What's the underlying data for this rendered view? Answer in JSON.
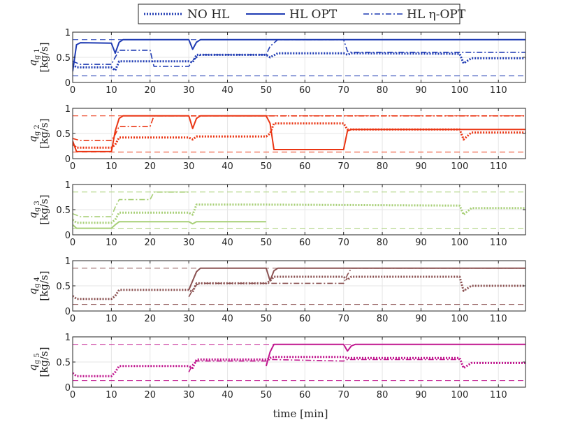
{
  "legend": {
    "entries": [
      {
        "label": "NO HL",
        "style": "dotted"
      },
      {
        "label": "HL OPT",
        "style": "solid"
      },
      {
        "label": "HL η-OPT",
        "style": "dashdot"
      }
    ]
  },
  "xaxis": {
    "label": "time [min]",
    "ticks": [
      "0",
      "10",
      "20",
      "30",
      "40",
      "50",
      "60",
      "70",
      "80",
      "90",
      "100",
      "110"
    ],
    "xlim": [
      0,
      117
    ]
  },
  "chart_data": [
    {
      "type": "line",
      "ylabel_var": "q",
      "ylabel_sub": "g 1",
      "ylabel_unit": "[kg/s]",
      "color": "#1f3bb3",
      "ylim": [
        0,
        1
      ],
      "yticks": [
        "0",
        "0.5",
        "1"
      ],
      "bounds": [
        0.13,
        0.85
      ],
      "series": [
        {
          "name": "NO HL",
          "points": [
            [
              0,
              0.36
            ],
            [
              1,
              0.3
            ],
            [
              10,
              0.3
            ],
            [
              11,
              0.24
            ],
            [
              12,
              0.42
            ],
            [
              30,
              0.42
            ],
            [
              31,
              0.4
            ],
            [
              32,
              0.55
            ],
            [
              50,
              0.55
            ],
            [
              51,
              0.5
            ],
            [
              53,
              0.58
            ],
            [
              70,
              0.58
            ],
            [
              71,
              0.55
            ],
            [
              72,
              0.58
            ],
            [
              100,
              0.57
            ],
            [
              101,
              0.38
            ],
            [
              103,
              0.48
            ],
            [
              117,
              0.48
            ]
          ]
        },
        {
          "name": "HL OPT",
          "points": [
            [
              0,
              0.22
            ],
            [
              1,
              0.75
            ],
            [
              2,
              0.79
            ],
            [
              10,
              0.78
            ],
            [
              11,
              0.58
            ],
            [
              12,
              0.8
            ],
            [
              13,
              0.85
            ],
            [
              30,
              0.85
            ],
            [
              31,
              0.66
            ],
            [
              32,
              0.8
            ],
            [
              33,
              0.85
            ],
            [
              117,
              0.85
            ]
          ]
        },
        {
          "name": "HL η-OPT",
          "points": [
            [
              0,
              0.42
            ],
            [
              2,
              0.36
            ],
            [
              10,
              0.36
            ],
            [
              11,
              0.5
            ],
            [
              12,
              0.64
            ],
            [
              20,
              0.64
            ],
            [
              21,
              0.32
            ],
            [
              30,
              0.32
            ],
            [
              31,
              0.44
            ],
            [
              33,
              0.55
            ],
            [
              50,
              0.55
            ],
            [
              51,
              0.72
            ],
            [
              53,
              0.85
            ],
            [
              70,
              0.85
            ],
            [
              71,
              0.62
            ],
            [
              72,
              0.6
            ],
            [
              117,
              0.6
            ]
          ]
        }
      ]
    },
    {
      "type": "line",
      "ylabel_var": "q",
      "ylabel_sub": "g 2",
      "ylabel_unit": "[kg/s]",
      "color": "#ea3513",
      "ylim": [
        0,
        1
      ],
      "yticks": [
        "0",
        "0.5",
        "1"
      ],
      "bounds": [
        0.13,
        0.85
      ],
      "series": [
        {
          "name": "NO HL",
          "points": [
            [
              0,
              0.28
            ],
            [
              1,
              0.22
            ],
            [
              10,
              0.22
            ],
            [
              11,
              0.28
            ],
            [
              12,
              0.42
            ],
            [
              30,
              0.42
            ],
            [
              31,
              0.38
            ],
            [
              32,
              0.44
            ],
            [
              50,
              0.44
            ],
            [
              51,
              0.5
            ],
            [
              52,
              0.7
            ],
            [
              70,
              0.7
            ],
            [
              71,
              0.58
            ],
            [
              72,
              0.58
            ],
            [
              100,
              0.58
            ],
            [
              101,
              0.38
            ],
            [
              103,
              0.52
            ],
            [
              117,
              0.52
            ]
          ]
        },
        {
          "name": "HL OPT",
          "points": [
            [
              0,
              0.35
            ],
            [
              1,
              0.14
            ],
            [
              10,
              0.14
            ],
            [
              11,
              0.55
            ],
            [
              12,
              0.8
            ],
            [
              13,
              0.85
            ],
            [
              30,
              0.85
            ],
            [
              31,
              0.6
            ],
            [
              32,
              0.8
            ],
            [
              33,
              0.85
            ],
            [
              50,
              0.85
            ],
            [
              51,
              0.7
            ],
            [
              52,
              0.18
            ],
            [
              70,
              0.18
            ],
            [
              71,
              0.55
            ],
            [
              72,
              0.58
            ],
            [
              117,
              0.58
            ]
          ]
        },
        {
          "name": "HL η-OPT",
          "points": [
            [
              0,
              0.4
            ],
            [
              2,
              0.36
            ],
            [
              10,
              0.36
            ],
            [
              11,
              0.48
            ],
            [
              12,
              0.64
            ],
            [
              20,
              0.64
            ],
            [
              21,
              0.85
            ],
            [
              117,
              0.85
            ]
          ]
        }
      ]
    },
    {
      "type": "line",
      "ylabel_var": "q",
      "ylabel_sub": "g 3",
      "ylabel_unit": "[kg/s]",
      "color": "#a7cf76",
      "ylim": [
        0,
        1
      ],
      "yticks": [
        "0",
        "0.5",
        "1"
      ],
      "bounds": [
        0.13,
        0.85
      ],
      "series": [
        {
          "name": "NO HL",
          "points": [
            [
              0,
              0.3
            ],
            [
              1,
              0.24
            ],
            [
              10,
              0.24
            ],
            [
              11,
              0.3
            ],
            [
              12,
              0.44
            ],
            [
              30,
              0.44
            ],
            [
              31,
              0.4
            ],
            [
              32,
              0.6
            ],
            [
              50,
              0.6
            ],
            [
              100,
              0.58
            ],
            [
              101,
              0.4
            ],
            [
              103,
              0.53
            ],
            [
              117,
              0.53
            ]
          ]
        },
        {
          "name": "HL OPT",
          "points": [
            [
              0,
              0.2
            ],
            [
              1,
              0.13
            ],
            [
              10,
              0.13
            ],
            [
              11,
              0.2
            ],
            [
              12,
              0.26
            ],
            [
              30,
              0.26
            ],
            [
              31,
              0.22
            ],
            [
              32,
              0.26
            ],
            [
              50,
              0.26
            ]
          ]
        },
        {
          "name": "HL η-OPT",
          "points": [
            [
              0,
              0.42
            ],
            [
              2,
              0.36
            ],
            [
              10,
              0.36
            ],
            [
              11,
              0.55
            ],
            [
              12,
              0.7
            ],
            [
              20,
              0.7
            ],
            [
              21,
              0.85
            ],
            [
              30,
              0.85
            ]
          ]
        }
      ]
    },
    {
      "type": "line",
      "ylabel_var": "q",
      "ylabel_sub": "g 4",
      "ylabel_unit": "[kg/s]",
      "color": "#8b5252",
      "ylim": [
        0,
        1
      ],
      "yticks": [
        "0",
        "0.5",
        "1"
      ],
      "bounds": [
        0.13,
        0.85
      ],
      "series": [
        {
          "name": "NO HL",
          "points": [
            [
              0,
              0.3
            ],
            [
              1,
              0.24
            ],
            [
              10,
              0.24
            ],
            [
              11,
              0.3
            ],
            [
              12,
              0.42
            ],
            [
              30,
              0.42
            ],
            [
              31,
              0.38
            ],
            [
              32,
              0.55
            ],
            [
              50,
              0.55
            ],
            [
              51,
              0.6
            ],
            [
              52,
              0.68
            ],
            [
              70,
              0.68
            ],
            [
              71,
              0.62
            ],
            [
              72,
              0.68
            ],
            [
              100,
              0.68
            ],
            [
              101,
              0.4
            ],
            [
              103,
              0.5
            ],
            [
              117,
              0.5
            ]
          ]
        },
        {
          "name": "HL OPT",
          "points": [
            [
              30,
              0.42
            ],
            [
              31,
              0.6
            ],
            [
              32,
              0.78
            ],
            [
              33,
              0.85
            ],
            [
              50,
              0.85
            ],
            [
              51,
              0.6
            ],
            [
              52,
              0.8
            ],
            [
              53,
              0.85
            ],
            [
              117,
              0.85
            ]
          ]
        },
        {
          "name": "HL η-OPT",
          "points": [
            [
              30,
              0.28
            ],
            [
              31,
              0.42
            ],
            [
              32,
              0.52
            ],
            [
              33,
              0.55
            ],
            [
              70,
              0.55
            ],
            [
              71,
              0.72
            ],
            [
              72,
              0.85
            ],
            [
              117,
              0.85
            ]
          ]
        }
      ]
    },
    {
      "type": "line",
      "ylabel_var": "q",
      "ylabel_sub": "g 5",
      "ylabel_unit": "[kg/s]",
      "color": "#c0168e",
      "ylim": [
        0,
        1
      ],
      "yticks": [
        "0",
        "0.5",
        "1"
      ],
      "bounds": [
        0.13,
        0.85
      ],
      "series": [
        {
          "name": "NO HL",
          "points": [
            [
              0,
              0.28
            ],
            [
              1,
              0.22
            ],
            [
              10,
              0.22
            ],
            [
              11,
              0.3
            ],
            [
              12,
              0.42
            ],
            [
              30,
              0.42
            ],
            [
              31,
              0.38
            ],
            [
              32,
              0.55
            ],
            [
              50,
              0.55
            ],
            [
              51,
              0.58
            ],
            [
              52,
              0.6
            ],
            [
              70,
              0.6
            ],
            [
              71,
              0.58
            ],
            [
              100,
              0.58
            ],
            [
              101,
              0.38
            ],
            [
              103,
              0.48
            ],
            [
              117,
              0.48
            ]
          ]
        },
        {
          "name": "HL OPT",
          "points": [
            [
              50,
              0.42
            ],
            [
              51,
              0.7
            ],
            [
              52,
              0.85
            ],
            [
              70,
              0.85
            ],
            [
              71,
              0.72
            ],
            [
              72,
              0.82
            ],
            [
              73,
              0.85
            ],
            [
              117,
              0.85
            ]
          ]
        },
        {
          "name": "HL η-OPT",
          "points": [
            [
              30,
              0.3
            ],
            [
              31,
              0.45
            ],
            [
              32,
              0.52
            ],
            [
              50,
              0.52
            ],
            [
              51,
              0.55
            ],
            [
              70,
              0.52
            ],
            [
              71,
              0.55
            ],
            [
              100,
              0.55
            ]
          ]
        }
      ]
    }
  ]
}
